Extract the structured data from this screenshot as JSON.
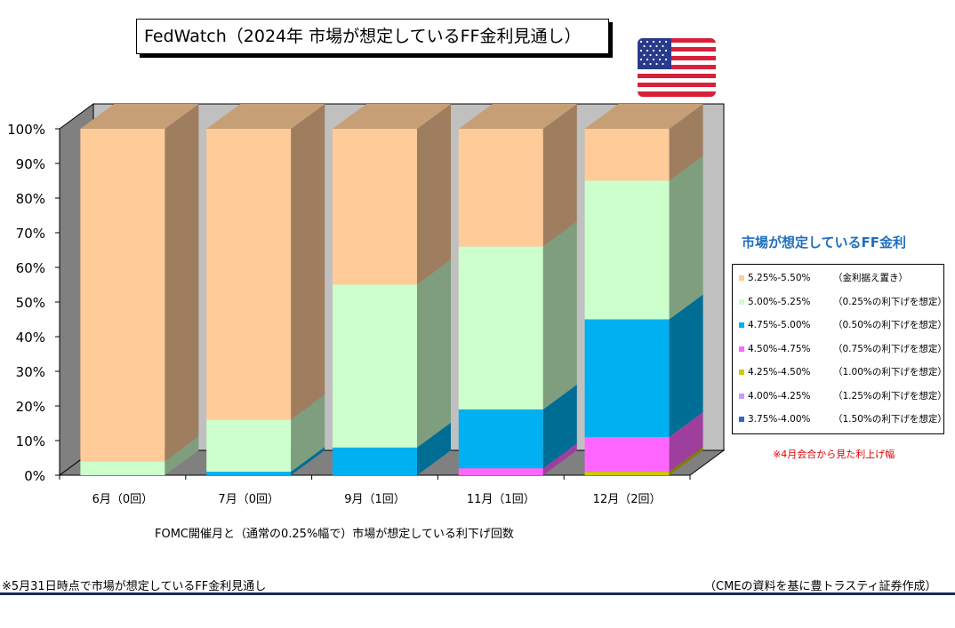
{
  "title": "FedWatch（2024年  市場が想定しているFF金利見通し）",
  "legend_title": "市場が想定しているFF金利",
  "legend_note": "※4月会合から見た利上げ幅",
  "xaxis_title": "FOMC開催月と（通常の0.25%幅で）市場が想定している利下げ回数",
  "footnote_left": "※5月31日時点で市場が想定しているFF金利見通し",
  "footnote_right": "（CMEの資料を基に豊トラスティ証券作成）",
  "colors": {
    "s525": "#ffcc99",
    "s500": "#ccffcc",
    "s475": "#00b0f0",
    "s450": "#ff66ff",
    "s425": "#cccc00",
    "s400": "#cc99ff",
    "s375": "#3366cc",
    "wall": "#c0c0c0",
    "floor": "#808080"
  },
  "chart_data": {
    "type": "bar",
    "stacked": true,
    "categories": [
      "6月（0回）",
      "7月（0回）",
      "9月（1回）",
      "11月（1回）",
      "12月（2回）"
    ],
    "ylim": [
      0,
      100
    ],
    "yticks": [
      "0%",
      "10%",
      "20%",
      "30%",
      "40%",
      "50%",
      "60%",
      "70%",
      "80%",
      "90%",
      "100%"
    ],
    "series": [
      {
        "key": "s375",
        "name": "3.75%-4.00%",
        "note": "（1.50%の利下げを想定）",
        "values": [
          0,
          0,
          0,
          0,
          0
        ]
      },
      {
        "key": "s400",
        "name": "4.00%-4.25%",
        "note": "（1.25%の利下げを想定）",
        "values": [
          0,
          0,
          0,
          0,
          0
        ]
      },
      {
        "key": "s425",
        "name": "4.25%-4.50%",
        "note": "（1.00%の利下げを想定）",
        "values": [
          0,
          0,
          0,
          0,
          1
        ]
      },
      {
        "key": "s450",
        "name": "4.50%-4.75%",
        "note": "（0.75%の利下げを想定）",
        "values": [
          0,
          0,
          0,
          2,
          10
        ]
      },
      {
        "key": "s475",
        "name": "4.75%-5.00%",
        "note": "（0.50%の利下げを想定）",
        "values": [
          0,
          1,
          8,
          17,
          34
        ]
      },
      {
        "key": "s500",
        "name": "5.00%-5.25%",
        "note": "（0.25%の利下げを想定）",
        "values": [
          4,
          15,
          47,
          47,
          40
        ]
      },
      {
        "key": "s525",
        "name": "5.25%-5.50%",
        "note": "（金利据え置き）",
        "values": [
          96,
          84,
          45,
          34,
          15
        ]
      }
    ]
  }
}
